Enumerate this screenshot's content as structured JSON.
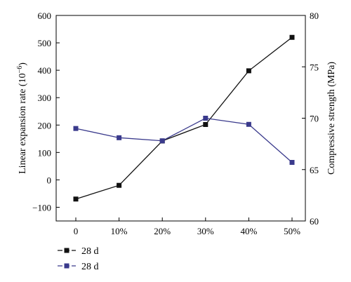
{
  "chart_data": {
    "type": "line",
    "categories": [
      "0",
      "10%",
      "20%",
      "30%",
      "40%",
      "50%"
    ],
    "left_axis": {
      "label_base": "Linear expansion rate (10",
      "label_exp": "−6",
      "label_close": ")",
      "range": [
        -150,
        600
      ],
      "ticks": [
        -100,
        0,
        100,
        200,
        300,
        400,
        500,
        600
      ],
      "tick_labels": [
        "−100",
        "0",
        "100",
        "200",
        "300",
        "400",
        "500",
        "600"
      ]
    },
    "right_axis": {
      "label": "Compressive strength (MPa)",
      "range": [
        60,
        80
      ],
      "ticks": [
        60,
        65,
        70,
        75,
        80
      ],
      "tick_labels": [
        "60",
        "65",
        "70",
        "75",
        "80"
      ]
    },
    "series": [
      {
        "name": "28 d",
        "axis": "left",
        "color": "#111111",
        "marker": "square",
        "values": [
          -70,
          -20,
          142,
          202,
          398,
          520
        ]
      },
      {
        "name": "28 d",
        "axis": "right",
        "color": "#3a3a8c",
        "marker": "square",
        "values": [
          69.0,
          68.1,
          67.8,
          70.0,
          69.4,
          65.7
        ]
      }
    ],
    "grid": false,
    "legend_position": "bottom-left"
  }
}
